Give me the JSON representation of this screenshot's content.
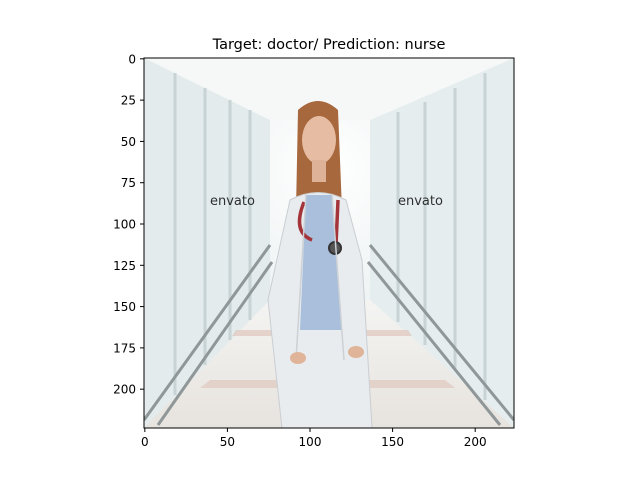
{
  "chart_data": {
    "type": "image",
    "title": "Target: doctor/ Prediction: nurse",
    "xlabel": "",
    "ylabel": "",
    "xlim": [
      -0.5,
      223.5
    ],
    "ylim": [
      223.5,
      -0.5
    ],
    "xticks": [
      0,
      50,
      100,
      150,
      200
    ],
    "yticks": [
      0,
      25,
      50,
      75,
      100,
      125,
      150,
      175,
      200
    ],
    "image_content": {
      "scene": "hospital-corridor",
      "subject": "woman-in-white-coat-with-stethoscope",
      "watermark": "envato"
    },
    "grid": false,
    "legend": "none"
  },
  "colors": {
    "corridor": "#eef2f2",
    "coat": "#e9ecef",
    "shirt": "#a9bfdc",
    "hair": "#a8683e",
    "skin": "#e6bca2",
    "stethoscope": "#a3343a"
  }
}
